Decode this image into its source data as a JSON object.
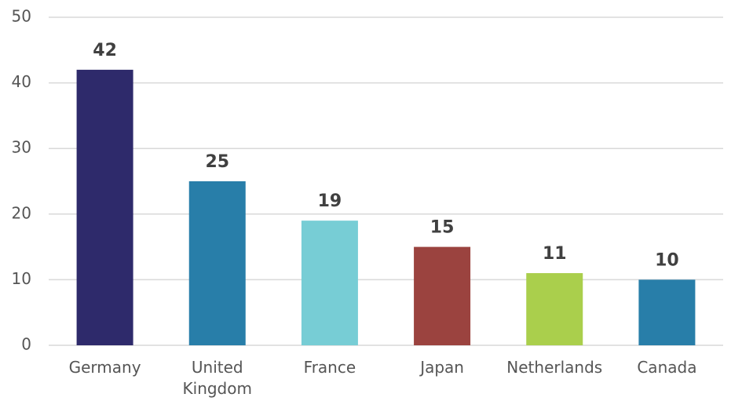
{
  "chart_data": {
    "type": "bar",
    "categories": [
      "Germany",
      "United Kingdom",
      "France",
      "Japan",
      "Netherlands",
      "Canada"
    ],
    "values": [
      42,
      25,
      19,
      15,
      11,
      10
    ],
    "colors": [
      "#2e2a6b",
      "#287ea9",
      "#77cdd5",
      "#9b433f",
      "#aacf4c",
      "#287ea9"
    ],
    "ylim": [
      0,
      50
    ],
    "yticks": [
      0,
      10,
      20,
      30,
      40,
      50
    ],
    "grid": true
  }
}
